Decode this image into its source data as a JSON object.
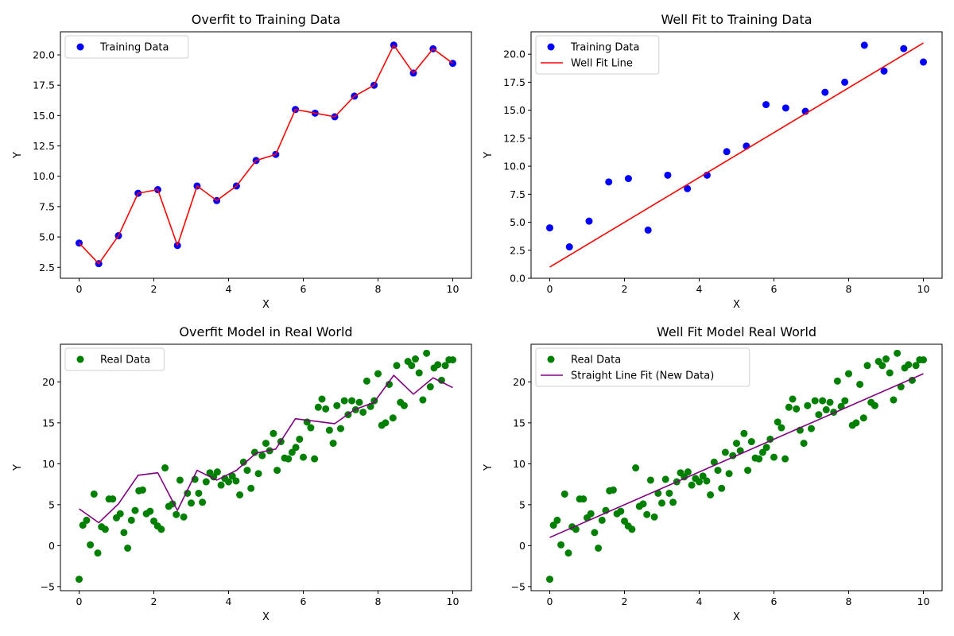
{
  "chart_data": [
    {
      "type": "scatter",
      "title": "Overfit to Training Data",
      "xlabel": "X",
      "ylabel": "Y",
      "xlim": [
        -0.5,
        10.5
      ],
      "ylim": [
        1.6,
        21.9
      ],
      "xticks": [
        0,
        2,
        4,
        6,
        8,
        10
      ],
      "xtick_labels": [
        "0",
        "2",
        "4",
        "6",
        "8",
        "10"
      ],
      "yticks": [
        2.5,
        5.0,
        7.5,
        10.0,
        12.5,
        15.0,
        17.5,
        20.0
      ],
      "ytick_labels": [
        "2.5",
        "5.0",
        "7.5",
        "10.0",
        "12.5",
        "15.0",
        "17.5",
        "20.0"
      ],
      "grid": false,
      "legend_position": "top-left",
      "series": [
        {
          "name": "Training Data",
          "kind": "scatter",
          "color": "#0000ff",
          "legend": true,
          "x": [
            0,
            0.526,
            1.053,
            1.579,
            2.105,
            2.632,
            3.158,
            3.684,
            4.211,
            4.737,
            5.263,
            5.789,
            6.316,
            6.842,
            7.368,
            7.895,
            8.421,
            8.947,
            9.474,
            10
          ],
          "y": [
            4.5,
            2.8,
            5.1,
            8.6,
            8.9,
            4.3,
            9.2,
            8.0,
            9.2,
            11.3,
            11.8,
            15.5,
            15.2,
            14.9,
            16.6,
            17.5,
            20.8,
            18.5,
            20.5,
            19.3
          ]
        },
        {
          "name": "",
          "kind": "line",
          "color": "#ff0000",
          "legend": false,
          "x": [
            0,
            0.526,
            1.053,
            1.579,
            2.105,
            2.632,
            3.158,
            3.684,
            4.211,
            4.737,
            5.263,
            5.789,
            6.316,
            6.842,
            7.368,
            7.895,
            8.421,
            8.947,
            9.474,
            10
          ],
          "y": [
            4.5,
            2.8,
            5.1,
            8.6,
            8.9,
            4.3,
            9.2,
            8.0,
            9.2,
            11.3,
            11.8,
            15.5,
            15.2,
            14.9,
            16.6,
            17.5,
            20.8,
            18.5,
            20.5,
            19.3
          ]
        }
      ]
    },
    {
      "type": "scatter",
      "title": "Well Fit to Training Data",
      "xlabel": "X",
      "ylabel": "Y",
      "xlim": [
        -0.5,
        10.5
      ],
      "ylim": [
        0,
        22
      ],
      "xticks": [
        0,
        2,
        4,
        6,
        8,
        10
      ],
      "xtick_labels": [
        "0",
        "2",
        "4",
        "6",
        "8",
        "10"
      ],
      "yticks": [
        0.0,
        2.5,
        5.0,
        7.5,
        10.0,
        12.5,
        15.0,
        17.5,
        20.0
      ],
      "ytick_labels": [
        "0.0",
        "2.5",
        "5.0",
        "7.5",
        "10.0",
        "12.5",
        "15.0",
        "17.5",
        "20.0"
      ],
      "grid": false,
      "legend_position": "top-left",
      "series": [
        {
          "name": "Training Data",
          "kind": "scatter",
          "color": "#0000ff",
          "legend": true,
          "x": [
            0,
            0.526,
            1.053,
            1.579,
            2.105,
            2.632,
            3.158,
            3.684,
            4.211,
            4.737,
            5.263,
            5.789,
            6.316,
            6.842,
            7.368,
            7.895,
            8.421,
            8.947,
            9.474,
            10
          ],
          "y": [
            4.5,
            2.8,
            5.1,
            8.6,
            8.9,
            4.3,
            9.2,
            8.0,
            9.2,
            11.3,
            11.8,
            15.5,
            15.2,
            14.9,
            16.6,
            17.5,
            20.8,
            18.5,
            20.5,
            19.3
          ]
        },
        {
          "name": "Well Fit Line",
          "kind": "line",
          "color": "#ff0000",
          "legend": true,
          "x": [
            0,
            10
          ],
          "y": [
            1.0,
            21.0
          ]
        }
      ]
    },
    {
      "type": "scatter",
      "title": "Overfit Model in Real World",
      "xlabel": "X",
      "ylabel": "Y",
      "xlim": [
        -0.5,
        10.5
      ],
      "ylim": [
        -5.5,
        24.6
      ],
      "xticks": [
        0,
        2,
        4,
        6,
        8,
        10
      ],
      "xtick_labels": [
        "0",
        "2",
        "4",
        "6",
        "8",
        "10"
      ],
      "yticks": [
        -5,
        0,
        5,
        10,
        15,
        20
      ],
      "ytick_labels": [
        "−5",
        "0",
        "5",
        "10",
        "15",
        "20"
      ],
      "grid": false,
      "legend_position": "top-left",
      "series": [
        {
          "name": "Real Data",
          "kind": "scatter",
          "color": "#008000",
          "legend": true,
          "x": [
            0,
            0.1,
            0.2,
            0.3,
            0.4,
            0.5,
            0.6,
            0.7,
            0.8,
            0.9,
            1.0,
            1.1,
            1.2,
            1.3,
            1.4,
            1.5,
            1.6,
            1.7,
            1.8,
            1.9,
            2.0,
            2.1,
            2.2,
            2.3,
            2.4,
            2.5,
            2.6,
            2.7,
            2.8,
            2.9,
            3.0,
            3.1,
            3.2,
            3.3,
            3.4,
            3.5,
            3.6,
            3.7,
            3.8,
            3.9,
            4.0,
            4.1,
            4.2,
            4.3,
            4.4,
            4.5,
            4.6,
            4.7,
            4.8,
            4.9,
            5.0,
            5.1,
            5.2,
            5.3,
            5.4,
            5.5,
            5.6,
            5.7,
            5.8,
            5.9,
            6.0,
            6.1,
            6.2,
            6.3,
            6.4,
            6.5,
            6.6,
            6.7,
            6.8,
            6.9,
            7.0,
            7.1,
            7.2,
            7.3,
            7.4,
            7.5,
            7.6,
            7.7,
            7.8,
            7.9,
            8.0,
            8.1,
            8.2,
            8.3,
            8.4,
            8.5,
            8.6,
            8.7,
            8.8,
            8.9,
            9.0,
            9.1,
            9.2,
            9.3,
            9.4,
            9.5,
            9.6,
            9.7,
            9.8,
            9.9,
            10.0
          ],
          "y": [
            -4.1,
            2.5,
            3.1,
            0.1,
            6.3,
            -0.9,
            2.3,
            2.0,
            5.7,
            5.7,
            3.4,
            3.9,
            1.6,
            -0.3,
            3.1,
            4.3,
            6.7,
            6.8,
            3.9,
            4.2,
            3.0,
            2.4,
            2.0,
            9.5,
            4.8,
            5.1,
            3.8,
            8.0,
            3.5,
            6.4,
            5.2,
            8.1,
            6.4,
            5.3,
            7.8,
            8.9,
            8.4,
            9.0,
            7.4,
            8.2,
            7.8,
            8.5,
            7.9,
            6.2,
            10.2,
            9.2,
            7.0,
            11.4,
            8.8,
            11.0,
            12.5,
            11.6,
            13.7,
            9.2,
            12.7,
            10.7,
            10.6,
            11.4,
            12.0,
            13.0,
            10.8,
            15.1,
            14.4,
            10.6,
            16.9,
            17.9,
            16.7,
            14.1,
            12.5,
            17.1,
            14.3,
            17.7,
            16.0,
            17.7,
            16.6,
            17.5,
            16.3,
            20.1,
            17.0,
            17.7,
            21.0,
            14.7,
            15.0,
            19.7,
            15.6,
            22.0,
            17.5,
            17.1,
            22.5,
            22.0,
            22.8,
            21.1,
            17.8,
            23.5,
            19.4,
            21.7,
            22.1,
            20.2,
            22.0,
            22.7,
            22.7
          ]
        },
        {
          "name": "",
          "kind": "line",
          "color": "#800080",
          "legend": false,
          "x": [
            0,
            0.526,
            1.053,
            1.579,
            2.105,
            2.632,
            3.158,
            3.684,
            4.211,
            4.737,
            5.263,
            5.789,
            6.316,
            6.842,
            7.368,
            7.895,
            8.421,
            8.947,
            9.474,
            10
          ],
          "y": [
            4.5,
            2.8,
            5.1,
            8.6,
            8.9,
            4.3,
            9.2,
            8.0,
            9.2,
            11.3,
            11.8,
            15.5,
            15.2,
            14.9,
            16.6,
            17.5,
            20.8,
            18.5,
            20.5,
            19.3
          ]
        }
      ]
    },
    {
      "type": "scatter",
      "title": "Well Fit Model Real World",
      "xlabel": "X",
      "ylabel": "Y",
      "xlim": [
        -0.5,
        10.5
      ],
      "ylim": [
        -5.5,
        24.6
      ],
      "xticks": [
        0,
        2,
        4,
        6,
        8,
        10
      ],
      "xtick_labels": [
        "0",
        "2",
        "4",
        "6",
        "8",
        "10"
      ],
      "yticks": [
        -5,
        0,
        5,
        10,
        15,
        20
      ],
      "ytick_labels": [
        "−5",
        "0",
        "5",
        "10",
        "15",
        "20"
      ],
      "grid": false,
      "legend_position": "top-left",
      "series": [
        {
          "name": "Real Data",
          "kind": "scatter",
          "color": "#008000",
          "legend": true,
          "x": [
            0,
            0.1,
            0.2,
            0.3,
            0.4,
            0.5,
            0.6,
            0.7,
            0.8,
            0.9,
            1.0,
            1.1,
            1.2,
            1.3,
            1.4,
            1.5,
            1.6,
            1.7,
            1.8,
            1.9,
            2.0,
            2.1,
            2.2,
            2.3,
            2.4,
            2.5,
            2.6,
            2.7,
            2.8,
            2.9,
            3.0,
            3.1,
            3.2,
            3.3,
            3.4,
            3.5,
            3.6,
            3.7,
            3.8,
            3.9,
            4.0,
            4.1,
            4.2,
            4.3,
            4.4,
            4.5,
            4.6,
            4.7,
            4.8,
            4.9,
            5.0,
            5.1,
            5.2,
            5.3,
            5.4,
            5.5,
            5.6,
            5.7,
            5.8,
            5.9,
            6.0,
            6.1,
            6.2,
            6.3,
            6.4,
            6.5,
            6.6,
            6.7,
            6.8,
            6.9,
            7.0,
            7.1,
            7.2,
            7.3,
            7.4,
            7.5,
            7.6,
            7.7,
            7.8,
            7.9,
            8.0,
            8.1,
            8.2,
            8.3,
            8.4,
            8.5,
            8.6,
            8.7,
            8.8,
            8.9,
            9.0,
            9.1,
            9.2,
            9.3,
            9.4,
            9.5,
            9.6,
            9.7,
            9.8,
            9.9,
            10.0
          ],
          "y": [
            -4.1,
            2.5,
            3.1,
            0.1,
            6.3,
            -0.9,
            2.3,
            2.0,
            5.7,
            5.7,
            3.4,
            3.9,
            1.6,
            -0.3,
            3.1,
            4.3,
            6.7,
            6.8,
            3.9,
            4.2,
            3.0,
            2.4,
            2.0,
            9.5,
            4.8,
            5.1,
            3.8,
            8.0,
            3.5,
            6.4,
            5.2,
            8.1,
            6.4,
            5.3,
            7.8,
            8.9,
            8.4,
            9.0,
            7.4,
            8.2,
            7.8,
            8.5,
            7.9,
            6.2,
            10.2,
            9.2,
            7.0,
            11.4,
            8.8,
            11.0,
            12.5,
            11.6,
            13.7,
            9.2,
            12.7,
            10.7,
            10.6,
            11.4,
            12.0,
            13.0,
            10.8,
            15.1,
            14.4,
            10.6,
            16.9,
            17.9,
            16.7,
            14.1,
            12.5,
            17.1,
            14.3,
            17.7,
            16.0,
            17.7,
            16.6,
            17.5,
            16.3,
            20.1,
            17.0,
            17.7,
            21.0,
            14.7,
            15.0,
            19.7,
            15.6,
            22.0,
            17.5,
            17.1,
            22.5,
            22.0,
            22.8,
            21.1,
            17.8,
            23.5,
            19.4,
            21.7,
            22.1,
            20.2,
            22.0,
            22.7,
            22.7
          ]
        },
        {
          "name": "Straight Line Fit (New Data)",
          "kind": "line",
          "color": "#800080",
          "legend": true,
          "x": [
            0,
            10
          ],
          "y": [
            1.0,
            21.0
          ]
        }
      ]
    }
  ]
}
